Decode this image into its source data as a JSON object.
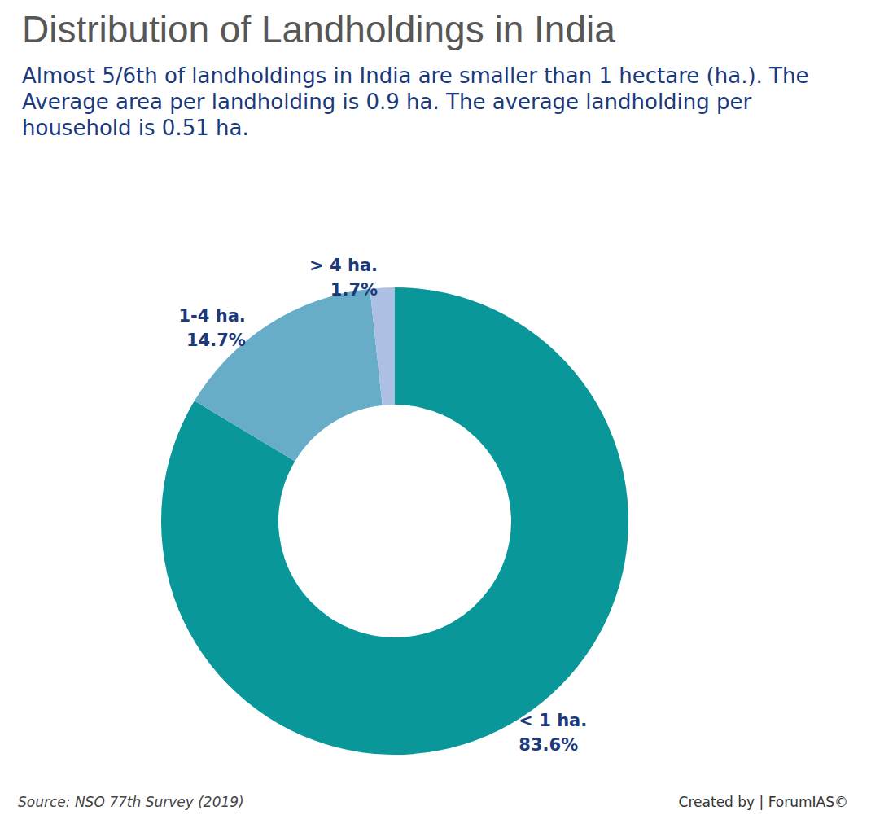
{
  "chart_data": {
    "type": "pie",
    "title": "Distribution of Landholdings in India",
    "subtitle": "Almost 5/6th of landholdings in India are smaller than 1 hectare (ha.). The Average area per landholding is 0.9 ha. The average landholding per household is 0.51 ha.",
    "categories": [
      "< 1 ha.",
      "1-4 ha.",
      "> 4 ha."
    ],
    "values": [
      83.6,
      14.7,
      1.7
    ],
    "value_labels": [
      "83.6%",
      "14.7%",
      "1.7%"
    ],
    "colors": [
      "#09979a",
      "#68adc8",
      "#aebfe4"
    ],
    "data_labels": true,
    "source": "Source: NSO 77th Survey (2019)",
    "credit": "Created by | ForumIAS©"
  }
}
